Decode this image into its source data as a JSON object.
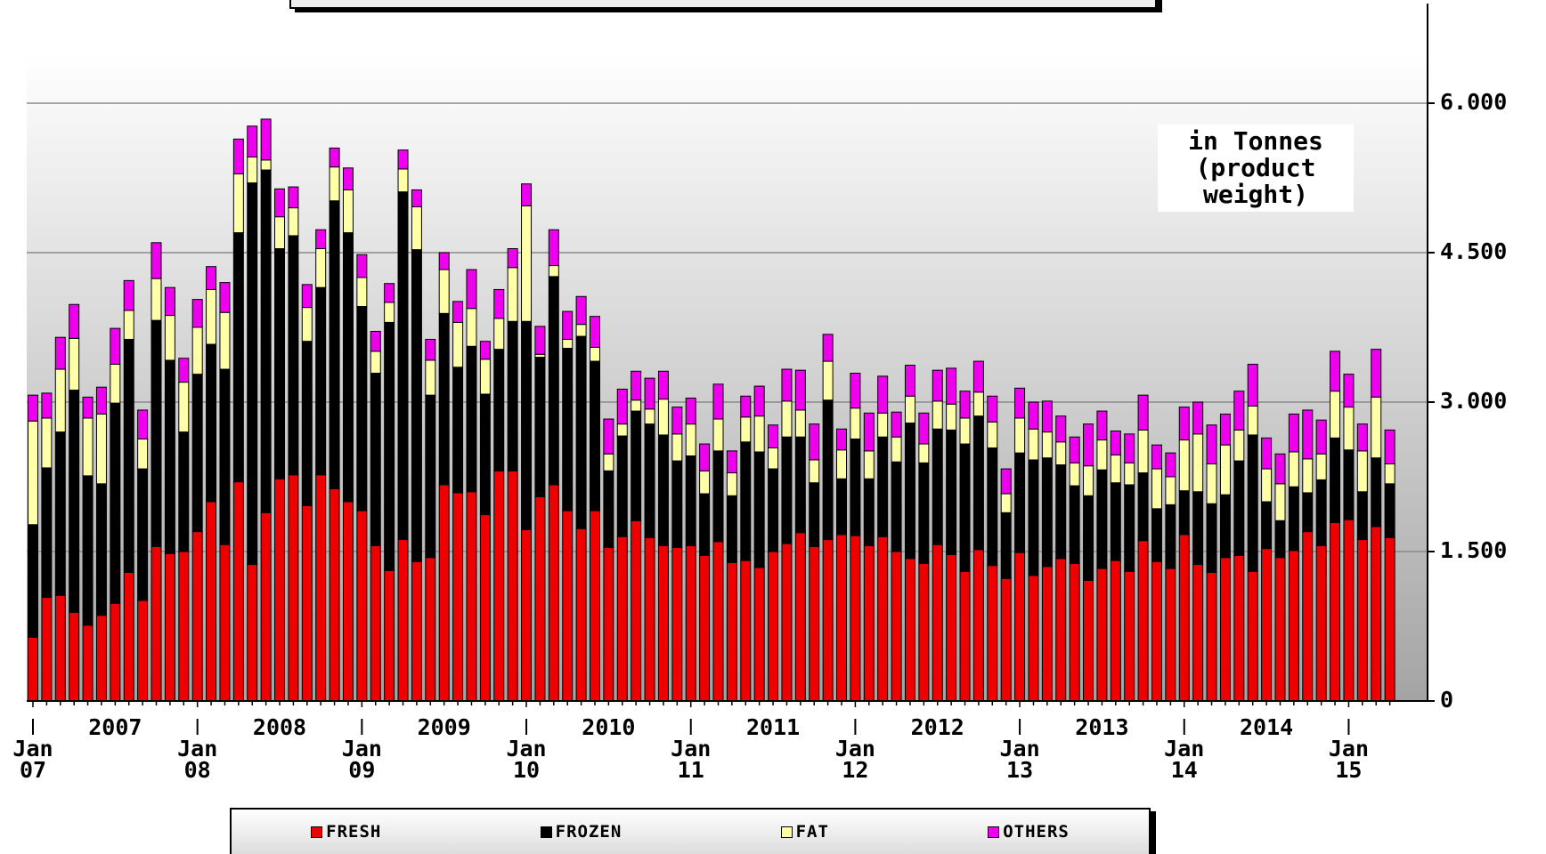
{
  "chart_data": {
    "type": "stacked_bar",
    "categories": [
      "Jan\n07",
      null,
      null,
      null,
      null,
      null,
      null,
      null,
      null,
      null,
      null,
      null,
      "Jan\n08",
      null,
      null,
      null,
      null,
      null,
      null,
      null,
      null,
      null,
      null,
      null,
      "Jan\n09",
      null,
      null,
      null,
      null,
      null,
      null,
      null,
      null,
      null,
      null,
      null,
      "Jan\n10",
      null,
      null,
      null,
      null,
      null,
      null,
      null,
      null,
      null,
      null,
      null,
      "Jan\n11",
      null,
      null,
      null,
      null,
      null,
      null,
      null,
      null,
      null,
      null,
      null,
      "Jan\n12",
      null,
      null,
      null,
      null,
      null,
      null,
      null,
      null,
      null,
      null,
      null,
      "Jan\n13",
      null,
      null,
      null,
      null,
      null,
      null,
      null,
      null,
      null,
      null,
      null,
      "Jan\n14",
      null,
      null,
      null,
      null,
      null,
      null,
      null,
      null,
      null,
      null,
      null,
      "Jan\n15",
      null,
      null,
      null
    ],
    "year_labels": [
      "2007",
      "2008",
      "2009",
      "2010",
      "2011",
      "2012",
      "2013",
      "2014"
    ],
    "annotation": "in Tonnes\n(product\nweight)",
    "series": [
      {
        "name": "FRESH",
        "color": "#ee0000",
        "values": [
          640,
          1040,
          1060,
          890,
          760,
          860,
          980,
          1290,
          1010,
          1550,
          1480,
          1500,
          1700,
          2000,
          1570,
          2200,
          1370,
          1890,
          2230,
          2270,
          1960,
          2270,
          2130,
          2000,
          1910,
          1560,
          1310,
          1620,
          1400,
          1440,
          2170,
          2090,
          2100,
          1870,
          2310,
          2310,
          1720,
          2050,
          2170,
          1910,
          1730,
          1910,
          1540,
          1650,
          1810,
          1640,
          1560,
          1540,
          1560,
          1460,
          1600,
          1390,
          1410,
          1340,
          1500,
          1580,
          1690,
          1550,
          1620,
          1670,
          1660,
          1560,
          1650,
          1500,
          1430,
          1380,
          1570,
          1470,
          1300,
          1520,
          1360,
          1230,
          1490,
          1260,
          1350,
          1430,
          1380,
          1210,
          1330,
          1410,
          1300,
          1610,
          1400,
          1330,
          1670,
          1370,
          1290,
          1440,
          1460,
          1300,
          1530,
          1440,
          1510,
          1700,
          1560,
          1790,
          1820,
          1620,
          1750,
          1640
        ]
      },
      {
        "name": "FROZEN",
        "color": "#000000",
        "values": [
          1130,
          1300,
          1640,
          2230,
          1500,
          1320,
          2010,
          2340,
          1320,
          2270,
          1940,
          1200,
          1580,
          1580,
          1760,
          2500,
          3830,
          3440,
          2310,
          2400,
          1650,
          1880,
          2890,
          2700,
          2050,
          1730,
          2490,
          3490,
          3130,
          1630,
          1720,
          1260,
          1460,
          1210,
          1220,
          1500,
          2090,
          1400,
          2090,
          1630,
          1930,
          1500,
          770,
          1010,
          1100,
          1140,
          1110,
          870,
          900,
          620,
          910,
          670,
          1190,
          1160,
          830,
          1070,
          960,
          640,
          1400,
          560,
          970,
          670,
          1000,
          900,
          1360,
          1010,
          1160,
          1250,
          1280,
          1340,
          1180,
          660,
          1000,
          1160,
          1090,
          940,
          780,
          850,
          990,
          780,
          870,
          680,
          530,
          640,
          440,
          730,
          690,
          630,
          950,
          1370,
          470,
          370,
          640,
          390,
          660,
          850,
          700,
          480,
          690,
          540
        ]
      },
      {
        "name": "FAT",
        "color": "#ffffa8",
        "values": [
          1040,
          500,
          630,
          520,
          580,
          700,
          390,
          290,
          300,
          420,
          450,
          500,
          470,
          550,
          570,
          590,
          260,
          100,
          320,
          280,
          340,
          390,
          340,
          430,
          290,
          220,
          200,
          230,
          430,
          350,
          440,
          450,
          380,
          350,
          310,
          540,
          1160,
          30,
          110,
          90,
          120,
          140,
          170,
          120,
          110,
          150,
          360,
          270,
          320,
          230,
          320,
          230,
          250,
          360,
          210,
          360,
          270,
          230,
          390,
          290,
          310,
          280,
          240,
          250,
          270,
          190,
          280,
          260,
          260,
          240,
          260,
          190,
          350,
          310,
          260,
          230,
          230,
          300,
          300,
          280,
          220,
          430,
          400,
          280,
          510,
          580,
          400,
          500,
          310,
          290,
          330,
          370,
          350,
          340,
          260,
          470,
          430,
          410,
          610,
          200
        ]
      },
      {
        "name": "OTHERS",
        "color": "#ee00ee",
        "values": [
          260,
          250,
          320,
          340,
          210,
          270,
          360,
          300,
          290,
          360,
          280,
          240,
          280,
          230,
          300,
          350,
          310,
          410,
          280,
          210,
          230,
          190,
          190,
          220,
          230,
          200,
          190,
          190,
          170,
          210,
          170,
          210,
          390,
          180,
          290,
          190,
          220,
          280,
          360,
          280,
          280,
          310,
          350,
          350,
          290,
          310,
          280,
          270,
          260,
          270,
          350,
          220,
          210,
          300,
          230,
          320,
          400,
          360,
          270,
          210,
          350,
          380,
          370,
          250,
          310,
          310,
          310,
          360,
          270,
          310,
          260,
          250,
          300,
          270,
          310,
          260,
          260,
          420,
          290,
          240,
          290,
          350,
          240,
          240,
          330,
          320,
          390,
          310,
          390,
          420,
          310,
          300,
          380,
          490,
          340,
          400,
          330,
          270,
          480,
          340
        ]
      }
    ],
    "ylim": [
      0,
      7000
    ],
    "yticks": [
      0,
      {
        "value": 1500,
        "label": "1.500"
      },
      {
        "value": 3000,
        "label": "3.000"
      },
      {
        "value": 4500,
        "label": "4.500"
      },
      {
        "value": 6000,
        "label": "6.000"
      }
    ],
    "grid": true
  }
}
